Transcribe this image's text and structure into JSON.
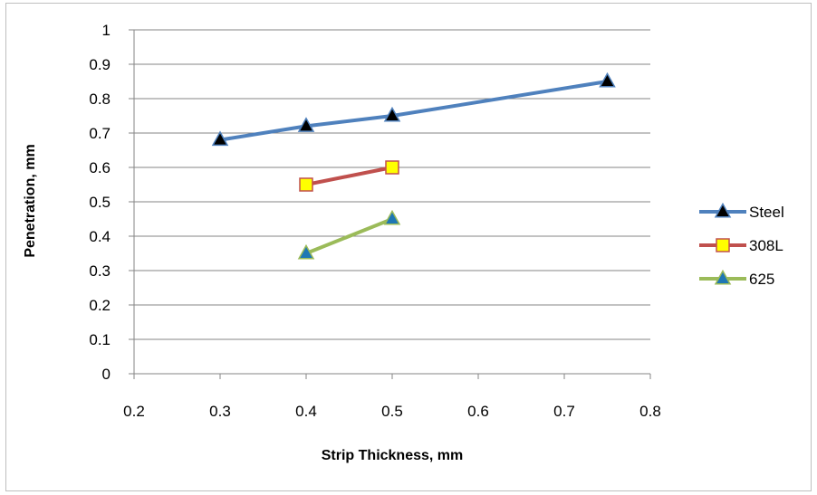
{
  "chart_data": {
    "type": "line",
    "title": "",
    "xlabel": "Strip Thickness,  mm",
    "ylabel": "Penetration, mm",
    "xlim": [
      0.2,
      0.8
    ],
    "ylim": [
      0,
      1
    ],
    "xticks": [
      "0.2",
      "0.3",
      "0.4",
      "0.5",
      "0.6",
      "0.7",
      "0.8"
    ],
    "yticks": [
      "0",
      "0.1",
      "0.2",
      "0.3",
      "0.4",
      "0.5",
      "0.6",
      "0.7",
      "0.8",
      "0.9",
      "1"
    ],
    "grid": "horizontal",
    "legend_position": "right",
    "series": [
      {
        "name": "Steel",
        "color": "#4F81BD",
        "marker": "triangle",
        "marker_fill": "#000000",
        "points": [
          [
            0.3,
            0.68
          ],
          [
            0.4,
            0.72
          ],
          [
            0.5,
            0.75
          ],
          [
            0.75,
            0.85
          ]
        ]
      },
      {
        "name": "308L",
        "color": "#C0504D",
        "marker": "square",
        "marker_fill": "#FFFF00",
        "points": [
          [
            0.4,
            0.55
          ],
          [
            0.5,
            0.6
          ]
        ]
      },
      {
        "name": "625",
        "color": "#9BBB59",
        "marker": "triangle",
        "marker_fill": "#1F77B4",
        "points": [
          [
            0.4,
            0.35
          ],
          [
            0.5,
            0.45
          ]
        ]
      }
    ]
  }
}
